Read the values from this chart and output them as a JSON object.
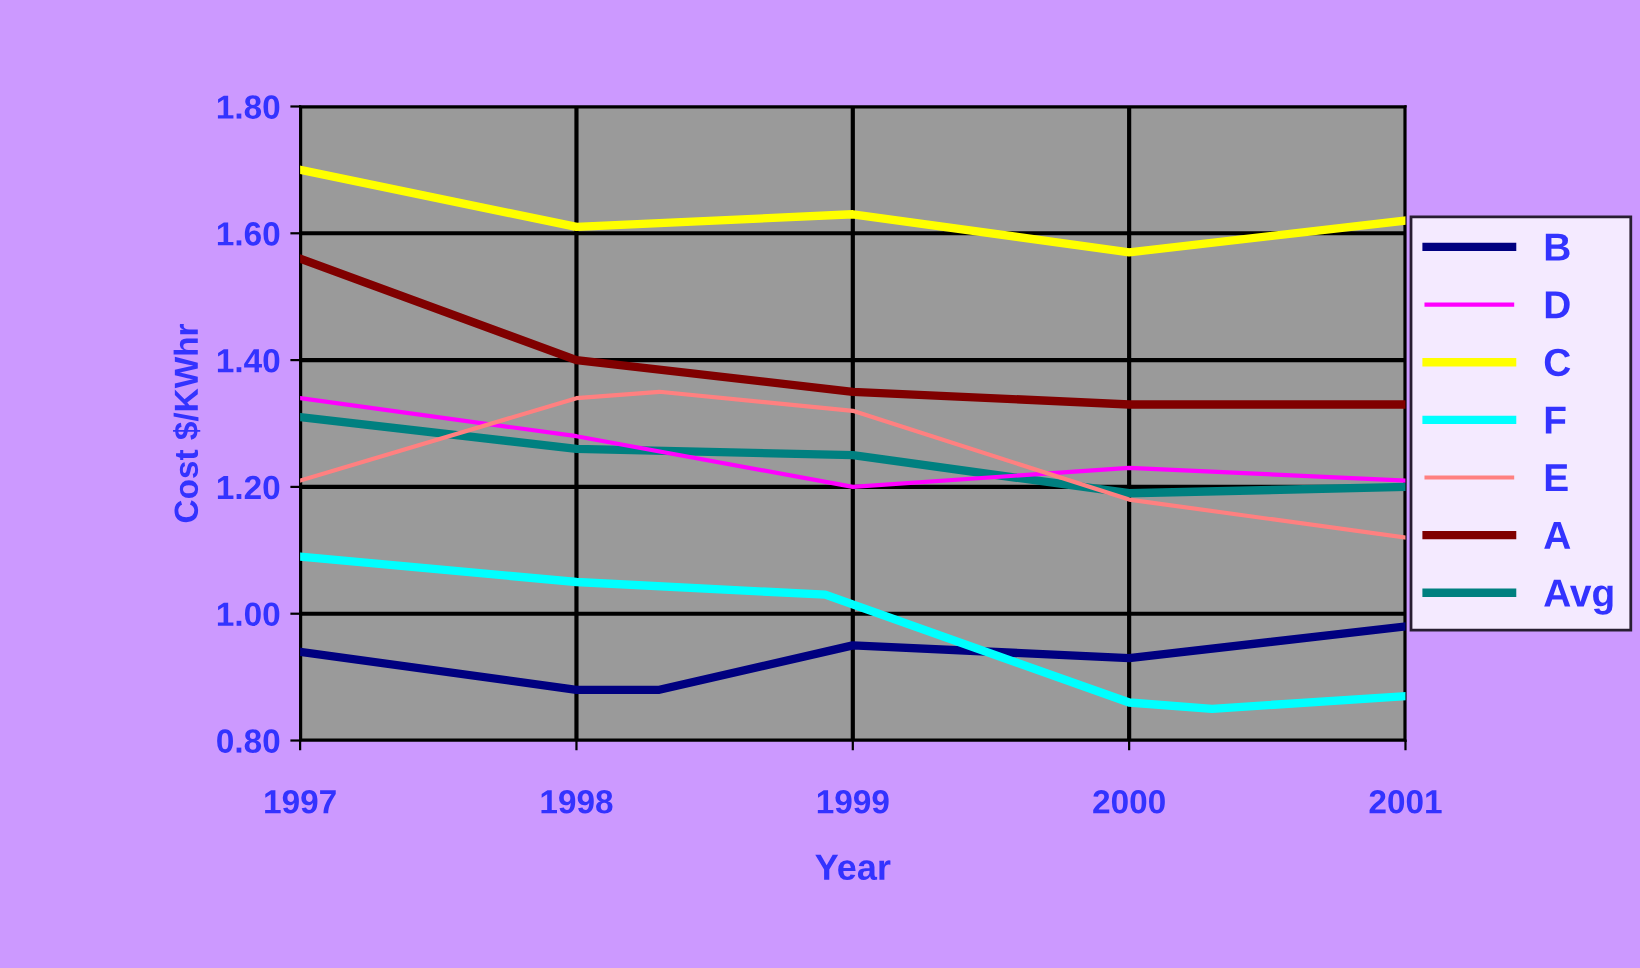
{
  "chart_data": {
    "type": "line",
    "xlabel": "Year",
    "ylabel": "Cost $/KWhr",
    "xlim": [
      1997,
      2001
    ],
    "xticks": [
      1997,
      1998,
      1999,
      2000,
      2001
    ],
    "ylim": [
      0.8,
      1.8
    ],
    "yticks": [
      {
        "value": 0.8,
        "label": "0.80"
      },
      {
        "value": 1.0,
        "label": "1.00"
      },
      {
        "value": 1.2,
        "label": "1.20"
      },
      {
        "value": 1.4,
        "label": "1.40"
      },
      {
        "value": 1.6,
        "label": "1.60"
      },
      {
        "value": 1.8,
        "label": "1.80"
      }
    ],
    "x": [
      1997,
      1998,
      1999,
      2000,
      2001
    ],
    "grid": true,
    "legend": "right",
    "marker": "none",
    "line_style": "solid",
    "series": [
      {
        "name": "B",
        "color": "#000080",
        "x": [
          1997,
          1998,
          1998.3,
          1999,
          2000,
          2001
        ],
        "values": [
          0.94,
          0.88,
          0.88,
          0.95,
          0.93,
          0.98
        ]
      },
      {
        "name": "D",
        "color": "#ff00ff",
        "values": [
          1.34,
          1.28,
          1.2,
          1.23,
          1.21
        ]
      },
      {
        "name": "C",
        "color": "#ffff00",
        "values": [
          1.7,
          1.61,
          1.63,
          1.57,
          1.62
        ]
      },
      {
        "name": "F",
        "color": "#00ffff",
        "x": [
          1997,
          1998,
          1998.9,
          2000,
          2000.3,
          2001
        ],
        "values": [
          1.09,
          1.05,
          1.03,
          0.86,
          0.85,
          0.87
        ]
      },
      {
        "name": "E",
        "color": "#ff8080",
        "x": [
          1997,
          1998,
          1998.3,
          1999,
          2000,
          2001
        ],
        "values": [
          1.21,
          1.34,
          1.35,
          1.32,
          1.18,
          1.12
        ]
      },
      {
        "name": "A",
        "color": "#800000",
        "values": [
          1.56,
          1.4,
          1.35,
          1.33,
          1.33
        ]
      },
      {
        "name": "Avg",
        "color": "#008080",
        "values": [
          1.31,
          1.26,
          1.25,
          1.19,
          1.2
        ]
      }
    ]
  }
}
